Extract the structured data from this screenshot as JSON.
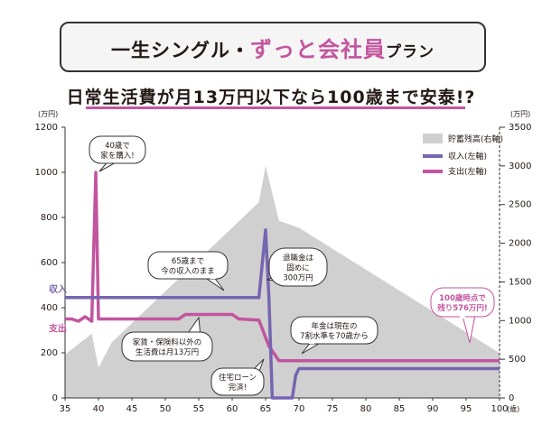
{
  "header": {
    "title_part1": "一生シングル・",
    "title_highlight": "ずっと会社員",
    "title_part2": "プラン"
  },
  "subtitle": "日常生活費が月13万円以下なら100歳まで安泰!?",
  "colors": {
    "income": "#7665b0",
    "expense": "#c2559f",
    "savings": "#d0d0d0",
    "accent_pink": "#c2559f"
  },
  "chart_data": {
    "type": "line",
    "left_axis_unit": "(万円)",
    "right_axis_unit": "(万円)",
    "x_unit": "(歳)",
    "xlim": [
      35,
      100
    ],
    "ylim_left": [
      0,
      1200
    ],
    "ylim_right": [
      0,
      3500
    ],
    "x_ticks": [
      35,
      40,
      45,
      50,
      55,
      60,
      65,
      70,
      75,
      80,
      85,
      90,
      95,
      100
    ],
    "y_ticks_left": [
      0,
      200,
      400,
      600,
      800,
      1000,
      1200
    ],
    "y_ticks_right": [
      0,
      500,
      1000,
      1500,
      2000,
      2500,
      3000,
      3500
    ],
    "legend": [
      {
        "label": "貯蓄残高(右軸)",
        "kind": "area"
      },
      {
        "label": "収入(左軸)",
        "kind": "income"
      },
      {
        "label": "支出(左軸)",
        "kind": "expense"
      }
    ],
    "series": [
      {
        "name": "収入(左軸)",
        "axis": "left",
        "x": [
          35,
          64,
          65,
          65.5,
          66,
          67.5,
          69,
          69.5,
          70,
          70.5,
          100
        ],
        "values": [
          445,
          445,
          745,
          445,
          0,
          0,
          0,
          100,
          130,
          130,
          130
        ]
      },
      {
        "name": "支出(左軸)",
        "axis": "left",
        "x": [
          35,
          36,
          37,
          38,
          39,
          39.6,
          40,
          41,
          52,
          53,
          60,
          61,
          64,
          65.5,
          67,
          100
        ],
        "values": [
          350,
          350,
          340,
          360,
          340,
          1000,
          350,
          350,
          350,
          370,
          370,
          350,
          345,
          230,
          165,
          165
        ]
      },
      {
        "name": "貯蓄残高(右軸)",
        "axis": "right",
        "x": [
          35,
          39,
          40,
          42,
          64,
          65,
          67,
          70,
          100
        ],
        "values": [
          560,
          830,
          390,
          720,
          2530,
          3000,
          2290,
          2200,
          580
        ]
      }
    ],
    "annotations": [
      {
        "text": "40歳で\n家を購入!"
      },
      {
        "text": "65歳まで\n今の収入のまま"
      },
      {
        "text": "退職金は\n固めに\n300万円"
      },
      {
        "text": "家賃・保険料以外の\n生活費は月13万円"
      },
      {
        "text": "年金は現在の\n7割水準を70歳から"
      },
      {
        "text": "住宅ローン\n完済!"
      },
      {
        "text": "100歳時点で\n残り576万円!"
      }
    ],
    "series_labels": {
      "income": "収入",
      "expense": "支出"
    },
    "grid": false
  }
}
